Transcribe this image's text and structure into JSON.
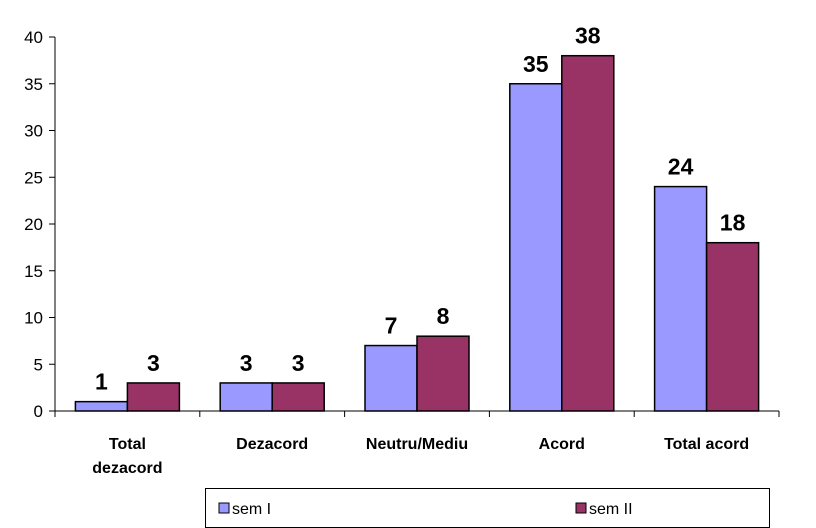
{
  "chart_data": {
    "type": "bar",
    "categories": [
      [
        "Total",
        "dezacord"
      ],
      [
        "Dezacord"
      ],
      [
        "Neutru/Mediu"
      ],
      [
        "Acord"
      ],
      [
        "Total acord"
      ]
    ],
    "series": [
      {
        "name": "sem I",
        "values": [
          1,
          3,
          7,
          35,
          24
        ],
        "color": "#9999FF"
      },
      {
        "name": "sem II",
        "values": [
          3,
          3,
          8,
          38,
          18
        ],
        "color": "#993366"
      }
    ],
    "ylim": [
      0,
      40
    ],
    "yticks": [
      0,
      5,
      10,
      15,
      20,
      25,
      30,
      35,
      40
    ],
    "grid": false,
    "legend": "bottom",
    "title": "",
    "xlabel": "",
    "ylabel": ""
  }
}
